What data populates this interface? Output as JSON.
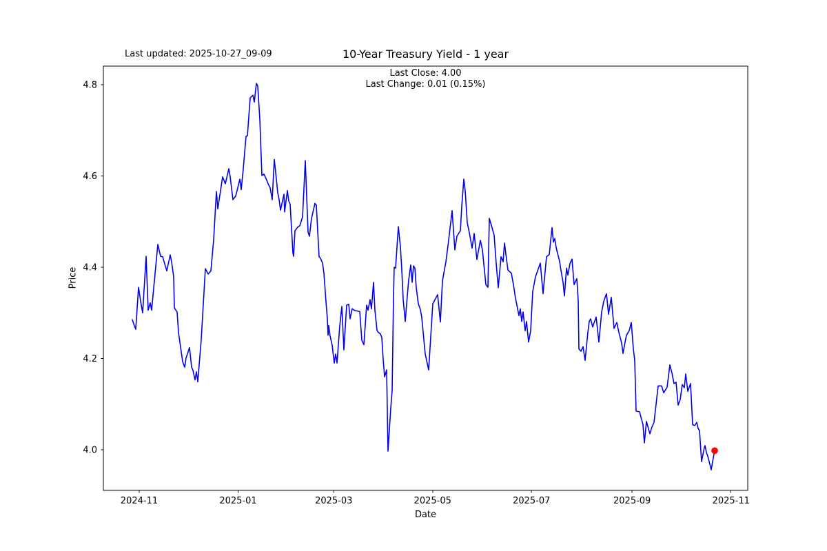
{
  "figure": {
    "last_updated": "Last updated: 2025-10-27_09-09"
  },
  "chart": {
    "title": "10-Year Treasury Yield - 1 year",
    "subtitle_close": "Last Close: 4.00",
    "subtitle_change": "Last Change: 0.01 (0.15%)",
    "xlabel": "Date",
    "ylabel": "Price"
  },
  "chart_data": {
    "type": "line",
    "title": "10-Year Treasury Yield - 1 year",
    "annotations": [
      "Last updated: 2025-10-27_09-09",
      "Last Close: 4.00",
      "Last Change: 0.01 (0.15%)"
    ],
    "xlabel": "Date",
    "ylabel": "Price",
    "last_close": 4.0,
    "last_change": 0.01,
    "last_change_pct": "0.15%",
    "line_color": "#0000ee",
    "last_point_color": "#ff0000",
    "grid": false,
    "legend": "none",
    "ylim": [
      3.911,
      4.845
    ],
    "y_ticks": [
      {
        "label": "4.0",
        "value": 4.0
      },
      {
        "label": "4.2",
        "value": 4.2
      },
      {
        "label": "4.4",
        "value": 4.4
      },
      {
        "label": "4.6",
        "value": 4.6
      },
      {
        "label": "4.8",
        "value": 4.8
      }
    ],
    "x_ticks": [
      {
        "label": "2024-11",
        "t": 0.0118
      },
      {
        "label": "2025-01",
        "t": 0.1817
      },
      {
        "label": "2025-03",
        "t": 0.3459
      },
      {
        "label": "2025-05",
        "t": 0.5157
      },
      {
        "label": "2025-07",
        "t": 0.6855
      },
      {
        "label": "2025-09",
        "t": 0.8582
      },
      {
        "label": "2025-11",
        "t": 1.0281
      }
    ],
    "series": [
      {
        "name": "10-Year Treasury Yield",
        "points": [
          [
            0.0,
            4.285
          ],
          [
            0.004,
            4.27
          ],
          [
            0.0059,
            4.264
          ],
          [
            0.0107,
            4.356
          ],
          [
            0.0142,
            4.326
          ],
          [
            0.0178,
            4.3
          ],
          [
            0.0237,
            4.424
          ],
          [
            0.0272,
            4.306
          ],
          [
            0.0308,
            4.322
          ],
          [
            0.0331,
            4.306
          ],
          [
            0.0438,
            4.45
          ],
          [
            0.0485,
            4.424
          ],
          [
            0.0521,
            4.423
          ],
          [
            0.0592,
            4.392
          ],
          [
            0.0651,
            4.427
          ],
          [
            0.0675,
            4.412
          ],
          [
            0.071,
            4.379
          ],
          [
            0.0722,
            4.311
          ],
          [
            0.0769,
            4.302
          ],
          [
            0.0793,
            4.257
          ],
          [
            0.0864,
            4.193
          ],
          [
            0.0899,
            4.181
          ],
          [
            0.0923,
            4.201
          ],
          [
            0.0982,
            4.224
          ],
          [
            0.1018,
            4.181
          ],
          [
            0.1041,
            4.174
          ],
          [
            0.1077,
            4.153
          ],
          [
            0.1101,
            4.171
          ],
          [
            0.1124,
            4.149
          ],
          [
            0.1183,
            4.242
          ],
          [
            0.1254,
            4.397
          ],
          [
            0.1302,
            4.385
          ],
          [
            0.1349,
            4.392
          ],
          [
            0.1396,
            4.46
          ],
          [
            0.1444,
            4.566
          ],
          [
            0.1467,
            4.528
          ],
          [
            0.155,
            4.598
          ],
          [
            0.1598,
            4.583
          ],
          [
            0.1657,
            4.616
          ],
          [
            0.168,
            4.598
          ],
          [
            0.1728,
            4.548
          ],
          [
            0.1775,
            4.556
          ],
          [
            0.1811,
            4.574
          ],
          [
            0.1846,
            4.593
          ],
          [
            0.187,
            4.57
          ],
          [
            0.1905,
            4.616
          ],
          [
            0.1953,
            4.687
          ],
          [
            0.1976,
            4.688
          ],
          [
            0.2024,
            4.771
          ],
          [
            0.2071,
            4.777
          ],
          [
            0.2095,
            4.762
          ],
          [
            0.213,
            4.803
          ],
          [
            0.2154,
            4.797
          ],
          [
            0.2189,
            4.724
          ],
          [
            0.2225,
            4.601
          ],
          [
            0.226,
            4.604
          ],
          [
            0.2308,
            4.591
          ],
          [
            0.2331,
            4.583
          ],
          [
            0.2367,
            4.574
          ],
          [
            0.2402,
            4.548
          ],
          [
            0.2438,
            4.636
          ],
          [
            0.2462,
            4.608
          ],
          [
            0.2497,
            4.563
          ],
          [
            0.2521,
            4.548
          ],
          [
            0.2544,
            4.525
          ],
          [
            0.2604,
            4.56
          ],
          [
            0.2615,
            4.521
          ],
          [
            0.2663,
            4.568
          ],
          [
            0.2686,
            4.545
          ],
          [
            0.271,
            4.538
          ],
          [
            0.2757,
            4.432
          ],
          [
            0.2769,
            4.424
          ],
          [
            0.2793,
            4.48
          ],
          [
            0.284,
            4.488
          ],
          [
            0.2876,
            4.491
          ],
          [
            0.2923,
            4.51
          ],
          [
            0.297,
            4.634
          ],
          [
            0.3018,
            4.477
          ],
          [
            0.3041,
            4.468
          ],
          [
            0.3077,
            4.507
          ],
          [
            0.3136,
            4.54
          ],
          [
            0.316,
            4.536
          ],
          [
            0.3207,
            4.423
          ],
          [
            0.3231,
            4.42
          ],
          [
            0.3266,
            4.409
          ],
          [
            0.329,
            4.387
          ],
          [
            0.3325,
            4.325
          ],
          [
            0.3349,
            4.287
          ],
          [
            0.3361,
            4.251
          ],
          [
            0.3373,
            4.272
          ],
          [
            0.3396,
            4.249
          ],
          [
            0.3432,
            4.229
          ],
          [
            0.3467,
            4.19
          ],
          [
            0.3491,
            4.21
          ],
          [
            0.3515,
            4.19
          ],
          [
            0.3562,
            4.272
          ],
          [
            0.3598,
            4.314
          ],
          [
            0.3633,
            4.219
          ],
          [
            0.3681,
            4.317
          ],
          [
            0.3716,
            4.319
          ],
          [
            0.374,
            4.287
          ],
          [
            0.3775,
            4.309
          ],
          [
            0.3822,
            4.305
          ],
          [
            0.3905,
            4.303
          ],
          [
            0.3941,
            4.24
          ],
          [
            0.3976,
            4.23
          ],
          [
            0.4024,
            4.317
          ],
          [
            0.4047,
            4.306
          ],
          [
            0.4083,
            4.329
          ],
          [
            0.4107,
            4.309
          ],
          [
            0.4142,
            4.367
          ],
          [
            0.4166,
            4.306
          ],
          [
            0.4201,
            4.262
          ],
          [
            0.4225,
            4.257
          ],
          [
            0.426,
            4.254
          ],
          [
            0.4284,
            4.246
          ],
          [
            0.4308,
            4.198
          ],
          [
            0.4331,
            4.16
          ],
          [
            0.4367,
            4.175
          ],
          [
            0.4391,
            3.997
          ],
          [
            0.4438,
            4.091
          ],
          [
            0.4462,
            4.13
          ],
          [
            0.4485,
            4.337
          ],
          [
            0.4497,
            4.4
          ],
          [
            0.4521,
            4.398
          ],
          [
            0.4568,
            4.489
          ],
          [
            0.4604,
            4.445
          ],
          [
            0.4627,
            4.395
          ],
          [
            0.4651,
            4.33
          ],
          [
            0.4686,
            4.281
          ],
          [
            0.4722,
            4.337
          ],
          [
            0.4746,
            4.372
          ],
          [
            0.4781,
            4.405
          ],
          [
            0.4805,
            4.367
          ],
          [
            0.4828,
            4.403
          ],
          [
            0.4852,
            4.398
          ],
          [
            0.4876,
            4.355
          ],
          [
            0.4911,
            4.32
          ],
          [
            0.4947,
            4.307
          ],
          [
            0.497,
            4.29
          ],
          [
            0.503,
            4.21
          ],
          [
            0.5089,
            4.175
          ],
          [
            0.516,
            4.32
          ],
          [
            0.5243,
            4.34
          ],
          [
            0.529,
            4.28
          ],
          [
            0.5325,
            4.37
          ],
          [
            0.5385,
            4.412
          ],
          [
            0.542,
            4.447
          ],
          [
            0.5491,
            4.524
          ],
          [
            0.5538,
            4.438
          ],
          [
            0.5574,
            4.468
          ],
          [
            0.5633,
            4.48
          ],
          [
            0.5657,
            4.533
          ],
          [
            0.5692,
            4.593
          ],
          [
            0.5716,
            4.568
          ],
          [
            0.5751,
            4.498
          ],
          [
            0.5799,
            4.468
          ],
          [
            0.5834,
            4.442
          ],
          [
            0.587,
            4.474
          ],
          [
            0.5917,
            4.417
          ],
          [
            0.5953,
            4.442
          ],
          [
            0.5976,
            4.459
          ],
          [
            0.6012,
            4.438
          ],
          [
            0.6071,
            4.362
          ],
          [
            0.6107,
            4.356
          ],
          [
            0.613,
            4.507
          ],
          [
            0.6166,
            4.492
          ],
          [
            0.6213,
            4.47
          ],
          [
            0.6249,
            4.408
          ],
          [
            0.6284,
            4.355
          ],
          [
            0.6331,
            4.423
          ],
          [
            0.6367,
            4.412
          ],
          [
            0.6391,
            4.453
          ],
          [
            0.6426,
            4.417
          ],
          [
            0.645,
            4.394
          ],
          [
            0.6509,
            4.387
          ],
          [
            0.6544,
            4.362
          ],
          [
            0.658,
            4.332
          ],
          [
            0.6639,
            4.294
          ],
          [
            0.6663,
            4.309
          ],
          [
            0.6686,
            4.281
          ],
          [
            0.671,
            4.302
          ],
          [
            0.6746,
            4.261
          ],
          [
            0.6769,
            4.281
          ],
          [
            0.6805,
            4.236
          ],
          [
            0.684,
            4.261
          ],
          [
            0.6876,
            4.347
          ],
          [
            0.6923,
            4.379
          ],
          [
            0.7006,
            4.409
          ],
          [
            0.7053,
            4.342
          ],
          [
            0.7112,
            4.423
          ],
          [
            0.716,
            4.428
          ],
          [
            0.7207,
            4.487
          ],
          [
            0.7231,
            4.455
          ],
          [
            0.7254,
            4.463
          ],
          [
            0.7278,
            4.443
          ],
          [
            0.7337,
            4.413
          ],
          [
            0.7361,
            4.393
          ],
          [
            0.7396,
            4.367
          ],
          [
            0.742,
            4.337
          ],
          [
            0.7456,
            4.398
          ],
          [
            0.7479,
            4.383
          ],
          [
            0.7515,
            4.408
          ],
          [
            0.755,
            4.418
          ],
          [
            0.7586,
            4.362
          ],
          [
            0.7633,
            4.375
          ],
          [
            0.7657,
            4.327
          ],
          [
            0.7669,
            4.221
          ],
          [
            0.7704,
            4.216
          ],
          [
            0.774,
            4.226
          ],
          [
            0.7775,
            4.196
          ],
          [
            0.7822,
            4.257
          ],
          [
            0.7846,
            4.281
          ],
          [
            0.787,
            4.287
          ],
          [
            0.7905,
            4.269
          ],
          [
            0.7964,
            4.291
          ],
          [
            0.8012,
            4.236
          ],
          [
            0.8059,
            4.302
          ],
          [
            0.8095,
            4.325
          ],
          [
            0.8142,
            4.342
          ],
          [
            0.8178,
            4.297
          ],
          [
            0.8225,
            4.334
          ],
          [
            0.8272,
            4.266
          ],
          [
            0.832,
            4.279
          ],
          [
            0.8355,
            4.257
          ],
          [
            0.8402,
            4.234
          ],
          [
            0.8426,
            4.211
          ],
          [
            0.8462,
            4.236
          ],
          [
            0.8485,
            4.251
          ],
          [
            0.8533,
            4.261
          ],
          [
            0.8568,
            4.279
          ],
          [
            0.8604,
            4.221
          ],
          [
            0.8627,
            4.196
          ],
          [
            0.8651,
            4.085
          ],
          [
            0.871,
            4.083
          ],
          [
            0.8769,
            4.055
          ],
          [
            0.8793,
            4.015
          ],
          [
            0.8828,
            4.062
          ],
          [
            0.8888,
            4.035
          ],
          [
            0.8923,
            4.05
          ],
          [
            0.8959,
            4.06
          ],
          [
            0.903,
            4.14
          ],
          [
            0.9089,
            4.14
          ],
          [
            0.9124,
            4.125
          ],
          [
            0.9183,
            4.137
          ],
          [
            0.9231,
            4.186
          ],
          [
            0.9266,
            4.168
          ],
          [
            0.9302,
            4.145
          ],
          [
            0.9337,
            4.148
          ],
          [
            0.9373,
            4.098
          ],
          [
            0.9408,
            4.11
          ],
          [
            0.9444,
            4.143
          ],
          [
            0.9479,
            4.136
          ],
          [
            0.9503,
            4.166
          ],
          [
            0.9538,
            4.128
          ],
          [
            0.9586,
            4.145
          ],
          [
            0.9621,
            4.055
          ],
          [
            0.9657,
            4.053
          ],
          [
            0.9692,
            4.06
          ],
          [
            0.9716,
            4.047
          ],
          [
            0.974,
            4.042
          ],
          [
            0.9775,
            3.974
          ],
          [
            0.9822,
            4.005
          ],
          [
            0.9834,
            4.009
          ],
          [
            0.9858,
            3.994
          ],
          [
            0.9882,
            3.986
          ],
          [
            0.9905,
            3.974
          ],
          [
            0.9941,
            3.956
          ],
          [
            0.9964,
            3.974
          ],
          [
            0.9988,
            3.99
          ],
          [
            1.0,
            3.998
          ]
        ]
      }
    ],
    "last_point": {
      "t": 1.0,
      "v": 3.998
    }
  }
}
